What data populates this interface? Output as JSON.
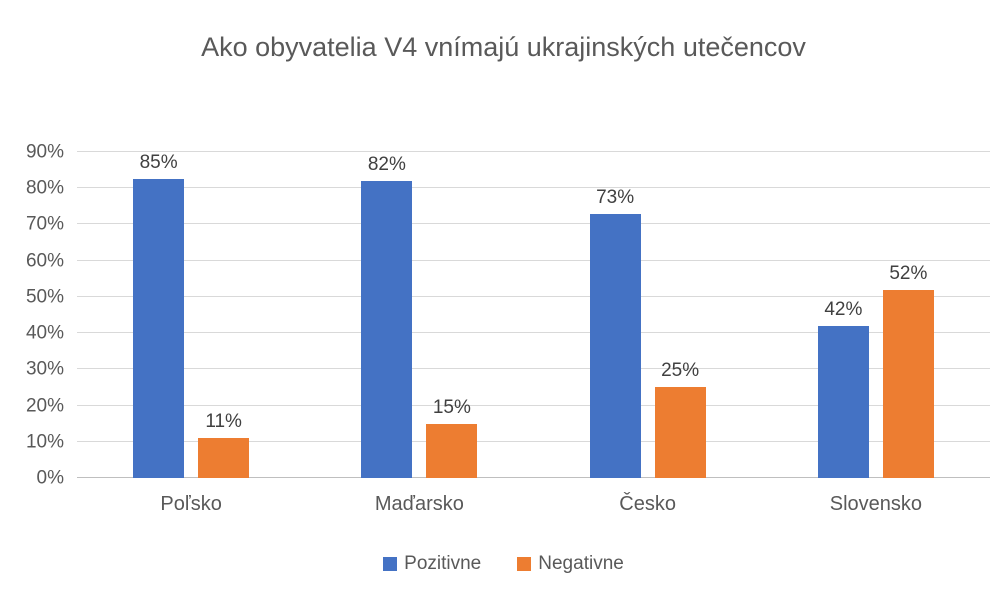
{
  "chart_data": {
    "type": "bar",
    "title": "Ako obyvatelia V4 vnímajú ukrajinských utečencov",
    "categories": [
      "Poľsko",
      "Maďarsko",
      "Česko",
      "Slovensko"
    ],
    "series": [
      {
        "name": "Pozitivne",
        "color": "#4472C4",
        "values": [
          85,
          82,
          73,
          42
        ]
      },
      {
        "name": "Negativne",
        "color": "#ED7D31",
        "values": [
          11,
          15,
          25,
          52
        ]
      }
    ],
    "data_labels": [
      "85%",
      "11%",
      "82%",
      "15%",
      "73%",
      "25%",
      "42%",
      "52%"
    ],
    "value_suffix": "%",
    "xlabel": "",
    "ylabel": "",
    "ylim": [
      0,
      90
    ],
    "ytick_step": 10,
    "ytick_labels": [
      "0%",
      "10%",
      "20%",
      "30%",
      "40%",
      "50%",
      "60%",
      "70%",
      "80%",
      "90%"
    ],
    "grid": true,
    "legend_position": "bottom"
  },
  "colors": {
    "title_text": "#595959",
    "axis_text": "#595959",
    "data_label_text": "#404040",
    "gridline": "#D9D9D9",
    "axis_line": "#BFBFBF",
    "background": "#FFFFFF",
    "series_positive": "#4472C4",
    "series_negative": "#ED7D31"
  }
}
